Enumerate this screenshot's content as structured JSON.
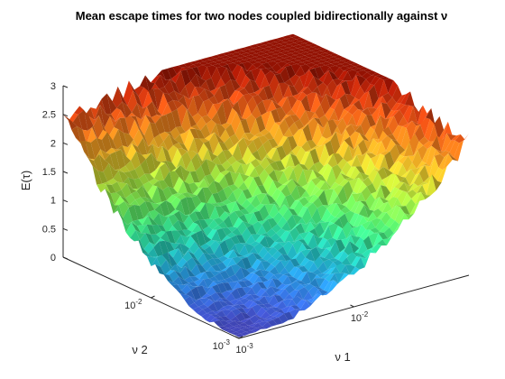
{
  "chart_data": {
    "type": "surface",
    "title": "Mean escape times for two nodes coupled bidirectionally against ν",
    "xlabel": "ν 1",
    "ylabel": "ν 2",
    "zlabel": "E(τ)",
    "x_scale": "log",
    "y_scale": "log",
    "xlim": [
      0.001,
      0.1
    ],
    "ylim": [
      0.001,
      0.1
    ],
    "zlim": [
      0,
      3
    ],
    "x_ticks": [
      {
        "base": "10",
        "exp": "-3"
      },
      {
        "base": "10",
        "exp": "-2"
      }
    ],
    "y_ticks": [
      {
        "base": "10",
        "exp": "-3"
      },
      {
        "base": "10",
        "exp": "-2"
      }
    ],
    "z_ticks": [
      "0",
      "0.5",
      "1",
      "1.5",
      "2",
      "2.5",
      "3"
    ],
    "colormap": "turbo",
    "grid": false,
    "description_values": {
      "min_z_near_origin": 0.0,
      "z_at_max_nu1": 2.4,
      "z_at_max_nu2": 2.5
    }
  }
}
